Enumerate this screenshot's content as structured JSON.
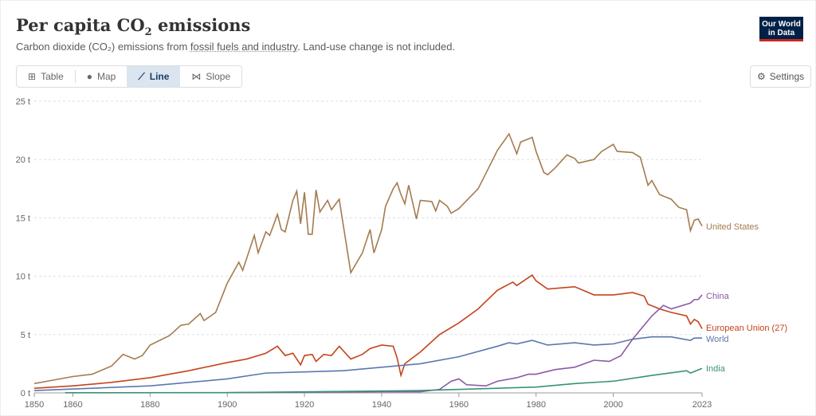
{
  "header": {
    "title": "Per capita CO",
    "title_sub": "2",
    "title_end": " emissions",
    "subtitle_a": "Carbon dioxide (CO₂) emissions from ",
    "subtitle_link": "fossil fuels and industry",
    "subtitle_b": ". Land-use change is not included.",
    "logo": "Our World in Data"
  },
  "tabs": [
    {
      "label": "Table",
      "icon": "table-icon"
    },
    {
      "label": "Map",
      "icon": "globe-icon"
    },
    {
      "label": "Line",
      "icon": "line-chart-icon",
      "active": true
    },
    {
      "label": "Slope",
      "icon": "slope-icon"
    }
  ],
  "settings_label": "Settings",
  "chart_data": {
    "type": "line",
    "title": "Per capita CO2 emissions",
    "ylim": [
      0,
      25
    ],
    "xlim": [
      1850,
      2023
    ],
    "yticks": [
      {
        "v": 0,
        "label": "0 t"
      },
      {
        "v": 5,
        "label": "5 t"
      },
      {
        "v": 10,
        "label": "10 t"
      },
      {
        "v": 15,
        "label": "15 t"
      },
      {
        "v": 20,
        "label": "20 t"
      },
      {
        "v": 25,
        "label": "25 t"
      }
    ],
    "xticks": [
      1850,
      1860,
      1880,
      1900,
      1920,
      1940,
      1960,
      1980,
      2000,
      2023
    ],
    "series": [
      {
        "name": "United States",
        "color": "#a47b4f",
        "points": [
          [
            1850,
            0.8
          ],
          [
            1855,
            1.1
          ],
          [
            1860,
            1.4
          ],
          [
            1865,
            1.6
          ],
          [
            1870,
            2.3
          ],
          [
            1873,
            3.3
          ],
          [
            1876,
            2.9
          ],
          [
            1878,
            3.2
          ],
          [
            1880,
            4.1
          ],
          [
            1885,
            4.9
          ],
          [
            1888,
            5.8
          ],
          [
            1890,
            5.9
          ],
          [
            1893,
            6.8
          ],
          [
            1894,
            6.2
          ],
          [
            1897,
            6.9
          ],
          [
            1900,
            9.4
          ],
          [
            1903,
            11.2
          ],
          [
            1904,
            10.5
          ],
          [
            1907,
            13.5
          ],
          [
            1908,
            12.0
          ],
          [
            1910,
            13.8
          ],
          [
            1911,
            13.5
          ],
          [
            1913,
            15.3
          ],
          [
            1914,
            14.0
          ],
          [
            1915,
            13.8
          ],
          [
            1917,
            16.5
          ],
          [
            1918,
            17.3
          ],
          [
            1919,
            14.5
          ],
          [
            1920,
            17.2
          ],
          [
            1921,
            13.6
          ],
          [
            1922,
            13.6
          ],
          [
            1923,
            17.4
          ],
          [
            1924,
            15.5
          ],
          [
            1926,
            16.5
          ],
          [
            1927,
            15.7
          ],
          [
            1929,
            16.6
          ],
          [
            1930,
            14.5
          ],
          [
            1932,
            10.3
          ],
          [
            1935,
            12.0
          ],
          [
            1937,
            14.0
          ],
          [
            1938,
            12.0
          ],
          [
            1940,
            14.0
          ],
          [
            1941,
            16.0
          ],
          [
            1943,
            17.5
          ],
          [
            1944,
            18.0
          ],
          [
            1945,
            17.0
          ],
          [
            1946,
            16.2
          ],
          [
            1947,
            17.8
          ],
          [
            1949,
            14.9
          ],
          [
            1950,
            16.5
          ],
          [
            1953,
            16.4
          ],
          [
            1954,
            15.6
          ],
          [
            1955,
            16.5
          ],
          [
            1957,
            16.0
          ],
          [
            1958,
            15.4
          ],
          [
            1960,
            15.8
          ],
          [
            1965,
            17.5
          ],
          [
            1970,
            20.8
          ],
          [
            1973,
            22.2
          ],
          [
            1975,
            20.5
          ],
          [
            1976,
            21.5
          ],
          [
            1979,
            21.9
          ],
          [
            1980,
            20.7
          ],
          [
            1982,
            18.9
          ],
          [
            1983,
            18.7
          ],
          [
            1985,
            19.3
          ],
          [
            1988,
            20.4
          ],
          [
            1990,
            20.1
          ],
          [
            1991,
            19.7
          ],
          [
            1995,
            20.0
          ],
          [
            1997,
            20.7
          ],
          [
            2000,
            21.3
          ],
          [
            2001,
            20.7
          ],
          [
            2005,
            20.6
          ],
          [
            2007,
            20.2
          ],
          [
            2009,
            17.8
          ],
          [
            2010,
            18.2
          ],
          [
            2012,
            17.0
          ],
          [
            2015,
            16.6
          ],
          [
            2017,
            15.9
          ],
          [
            2019,
            15.7
          ],
          [
            2020,
            13.9
          ],
          [
            2021,
            14.8
          ],
          [
            2022,
            14.9
          ],
          [
            2023,
            14.3
          ]
        ]
      },
      {
        "name": "European Union (27)",
        "color": "#c4441b",
        "points": [
          [
            1850,
            0.4
          ],
          [
            1860,
            0.6
          ],
          [
            1870,
            0.9
          ],
          [
            1880,
            1.3
          ],
          [
            1890,
            1.9
          ],
          [
            1900,
            2.6
          ],
          [
            1905,
            2.9
          ],
          [
            1910,
            3.4
          ],
          [
            1913,
            4.0
          ],
          [
            1915,
            3.2
          ],
          [
            1917,
            3.4
          ],
          [
            1919,
            2.4
          ],
          [
            1920,
            3.2
          ],
          [
            1922,
            3.3
          ],
          [
            1923,
            2.7
          ],
          [
            1925,
            3.3
          ],
          [
            1927,
            3.2
          ],
          [
            1929,
            4.0
          ],
          [
            1932,
            2.9
          ],
          [
            1935,
            3.3
          ],
          [
            1937,
            3.8
          ],
          [
            1940,
            4.1
          ],
          [
            1943,
            4.0
          ],
          [
            1944,
            3.0
          ],
          [
            1945,
            1.5
          ],
          [
            1946,
            2.5
          ],
          [
            1950,
            3.5
          ],
          [
            1955,
            5.0
          ],
          [
            1960,
            6.0
          ],
          [
            1965,
            7.2
          ],
          [
            1970,
            8.8
          ],
          [
            1974,
            9.5
          ],
          [
            1975,
            9.2
          ],
          [
            1979,
            10.1
          ],
          [
            1980,
            9.6
          ],
          [
            1983,
            8.9
          ],
          [
            1990,
            9.1
          ],
          [
            1995,
            8.4
          ],
          [
            2000,
            8.4
          ],
          [
            2005,
            8.6
          ],
          [
            2008,
            8.3
          ],
          [
            2009,
            7.6
          ],
          [
            2012,
            7.2
          ],
          [
            2015,
            6.9
          ],
          [
            2019,
            6.6
          ],
          [
            2020,
            5.9
          ],
          [
            2021,
            6.3
          ],
          [
            2022,
            6.1
          ],
          [
            2023,
            5.5
          ]
        ]
      },
      {
        "name": "World",
        "color": "#5a78ad",
        "points": [
          [
            1850,
            0.2
          ],
          [
            1880,
            0.6
          ],
          [
            1900,
            1.2
          ],
          [
            1910,
            1.7
          ],
          [
            1920,
            1.8
          ],
          [
            1930,
            1.9
          ],
          [
            1940,
            2.2
          ],
          [
            1950,
            2.5
          ],
          [
            1960,
            3.1
          ],
          [
            1970,
            4.0
          ],
          [
            1973,
            4.3
          ],
          [
            1975,
            4.2
          ],
          [
            1979,
            4.5
          ],
          [
            1983,
            4.1
          ],
          [
            1990,
            4.3
          ],
          [
            1995,
            4.1
          ],
          [
            2000,
            4.2
          ],
          [
            2005,
            4.6
          ],
          [
            2010,
            4.8
          ],
          [
            2015,
            4.8
          ],
          [
            2020,
            4.5
          ],
          [
            2021,
            4.7
          ],
          [
            2023,
            4.7
          ]
        ]
      },
      {
        "name": "China",
        "color": "#8a5aa6",
        "points": [
          [
            1900,
            0.02
          ],
          [
            1940,
            0.1
          ],
          [
            1950,
            0.1
          ],
          [
            1955,
            0.3
          ],
          [
            1958,
            1.0
          ],
          [
            1960,
            1.2
          ],
          [
            1962,
            0.7
          ],
          [
            1967,
            0.6
          ],
          [
            1970,
            1.0
          ],
          [
            1975,
            1.3
          ],
          [
            1978,
            1.6
          ],
          [
            1980,
            1.6
          ],
          [
            1985,
            2.0
          ],
          [
            1990,
            2.2
          ],
          [
            1995,
            2.8
          ],
          [
            1999,
            2.7
          ],
          [
            2002,
            3.2
          ],
          [
            2005,
            4.6
          ],
          [
            2010,
            6.6
          ],
          [
            2013,
            7.5
          ],
          [
            2015,
            7.2
          ],
          [
            2019,
            7.6
          ],
          [
            2020,
            7.7
          ],
          [
            2021,
            8.0
          ],
          [
            2022,
            8.0
          ],
          [
            2023,
            8.4
          ]
        ]
      },
      {
        "name": "India",
        "color": "#3a9178",
        "points": [
          [
            1858,
            0.01
          ],
          [
            1900,
            0.02
          ],
          [
            1950,
            0.2
          ],
          [
            1970,
            0.4
          ],
          [
            1980,
            0.5
          ],
          [
            1990,
            0.8
          ],
          [
            2000,
            1.0
          ],
          [
            2010,
            1.5
          ],
          [
            2019,
            1.9
          ],
          [
            2020,
            1.7
          ],
          [
            2023,
            2.1
          ]
        ]
      }
    ]
  }
}
